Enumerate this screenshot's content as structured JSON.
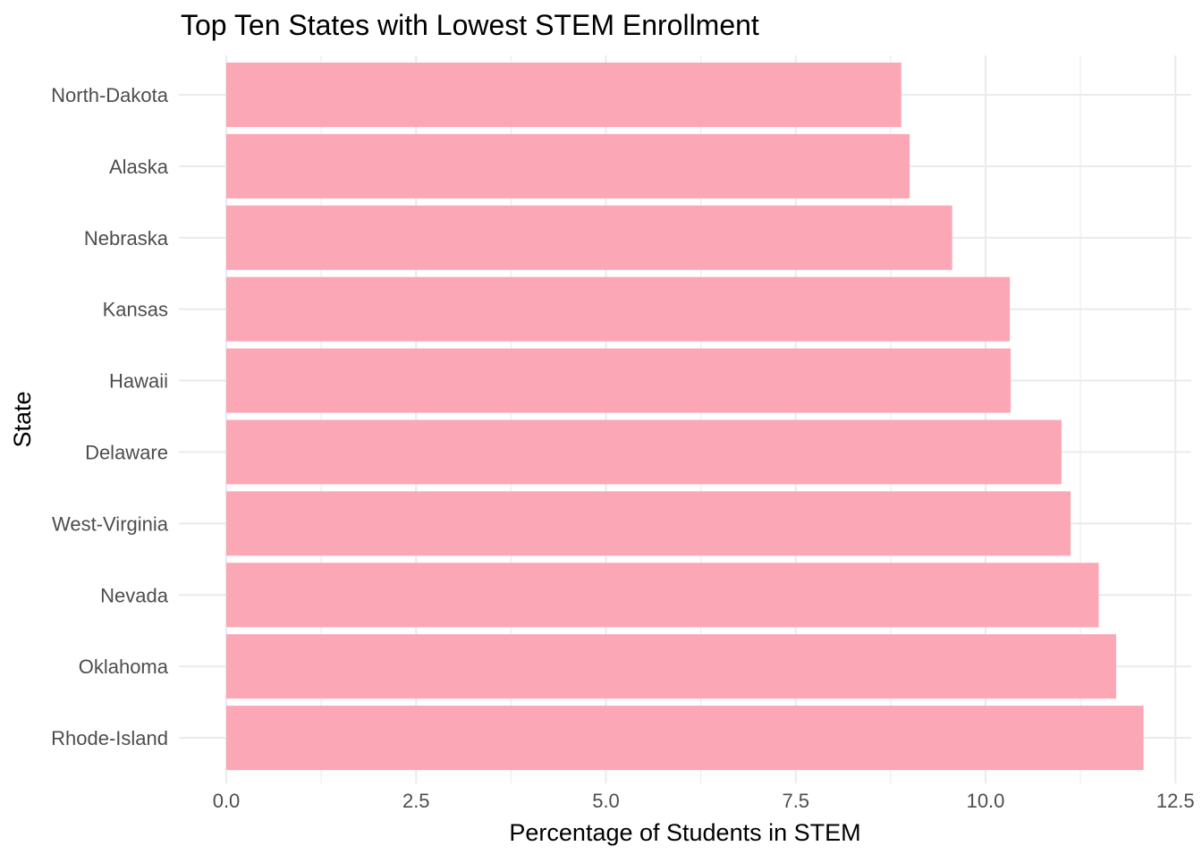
{
  "chart_data": {
    "type": "bar",
    "orientation": "horizontal",
    "title": "Top Ten States with Lowest STEM Enrollment",
    "xlabel": "Percentage of Students in STEM",
    "ylabel": "State",
    "categories": [
      "Rhode-Island",
      "Oklahoma",
      "Nevada",
      "West-Virginia",
      "Delaware",
      "Hawaii",
      "Kansas",
      "Nebraska",
      "Alaska",
      "North-Dakota"
    ],
    "values": [
      12.08,
      11.72,
      11.49,
      11.12,
      11.0,
      10.33,
      10.32,
      9.56,
      9.0,
      8.89
    ],
    "xlim": [
      0,
      12.5
    ],
    "xticks": [
      "0.0",
      "2.5",
      "5.0",
      "7.5",
      "10.0",
      "12.5"
    ],
    "grid": true,
    "bar_color": "#fca7b5"
  }
}
